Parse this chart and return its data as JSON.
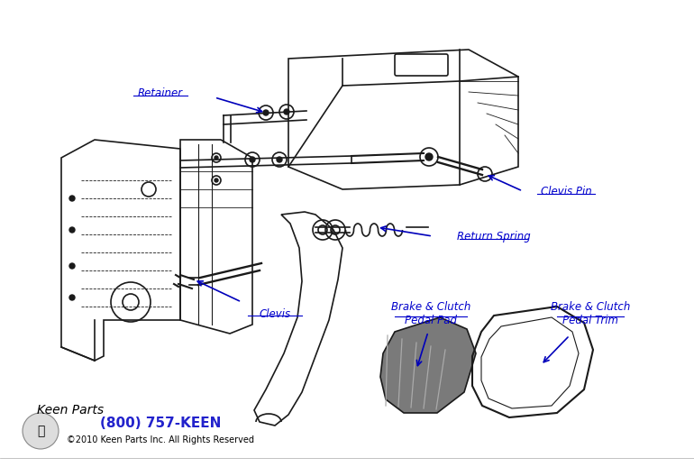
{
  "background_color": "#ffffff",
  "line_color": "#1a1a1a",
  "label_color": "#0000cc",
  "retainer_label": "Retainer",
  "clevis_pin_label": "Clevis Pin",
  "return_spring_label": "Return Spring",
  "brake_pad_label": "Brake & Clutch\nPedal Pad",
  "brake_trim_label": "Brake & Clutch\nPedal Trim",
  "clevis_label": "Clevis",
  "phone_text": "(800) 757-KEEN",
  "copyright_text": "©2010 Keen Parts Inc. All Rights Reserved",
  "phone_color": "#2222cc",
  "arrow_color": "#0000bb"
}
